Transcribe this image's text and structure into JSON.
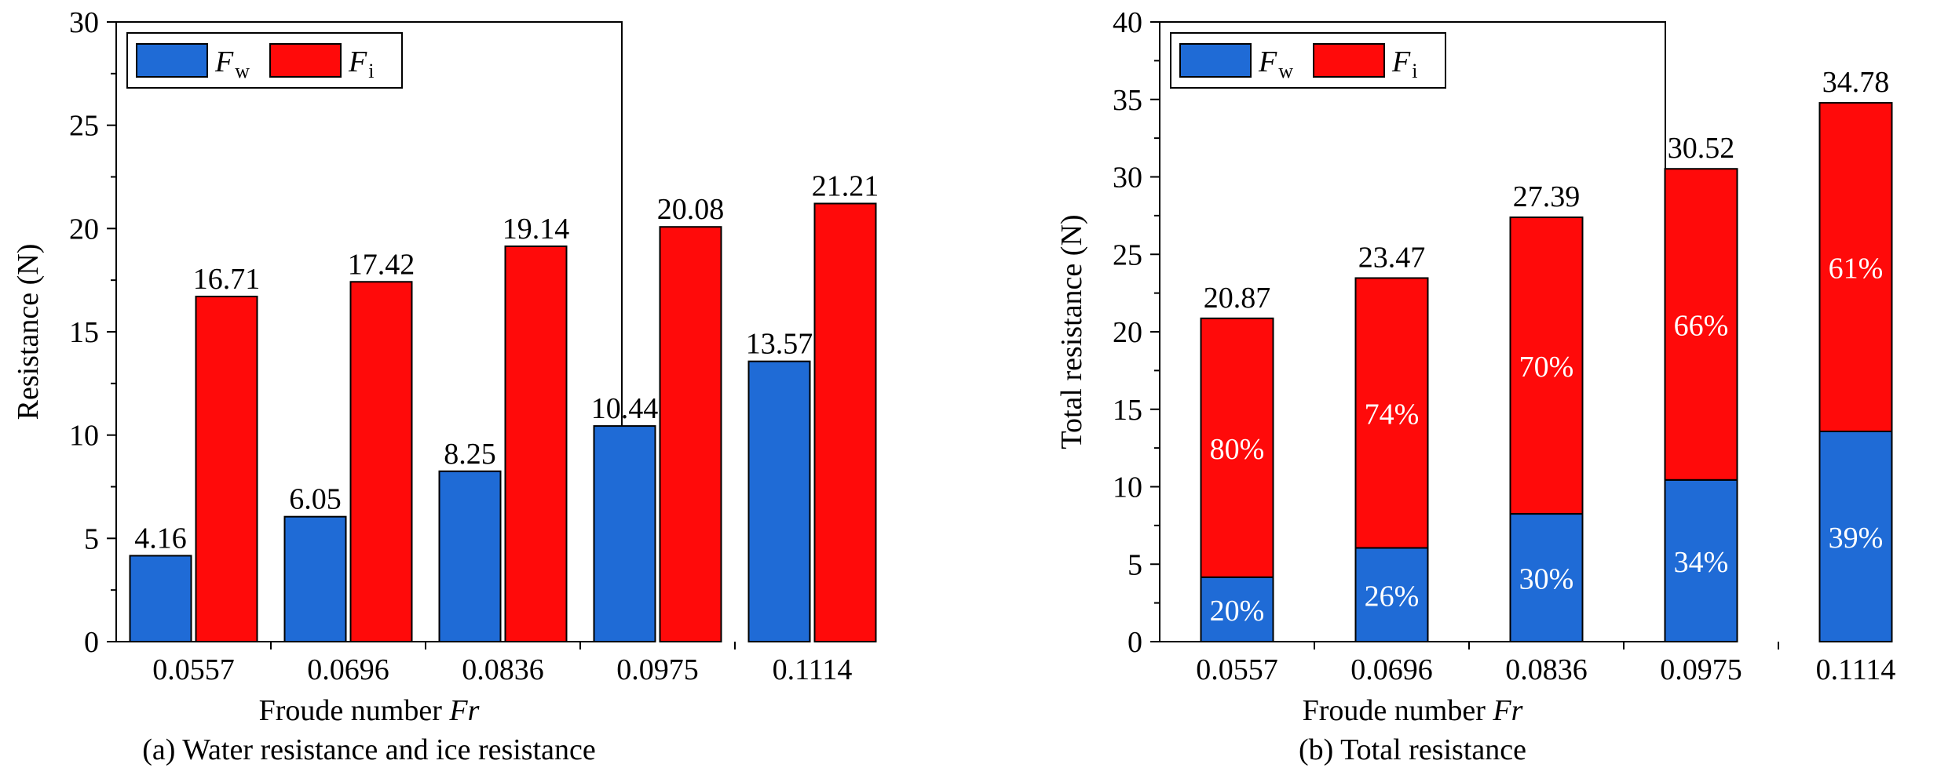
{
  "colors": {
    "water": "#1f6bd6",
    "ice": "#ff0a0a",
    "axis": "#000000"
  },
  "chart_data": [
    {
      "type": "bar",
      "caption": "(a) Water resistance and ice resistance",
      "xlabel": "Froude number",
      "xlabel_symbol": "Fr",
      "ylabel": "Resistance (N)",
      "ylim": [
        0,
        30
      ],
      "yticks": [
        "0",
        "5",
        "10",
        "15",
        "20",
        "25",
        "30"
      ],
      "categories": [
        "0.0557",
        "0.0696",
        "0.0836",
        "0.0975",
        "0.1114"
      ],
      "legend": {
        "placement": "top-left",
        "entries": [
          {
            "symbol": "F",
            "subscript": "w"
          },
          {
            "symbol": "F",
            "subscript": "i"
          }
        ]
      },
      "series": [
        {
          "name": "Fw",
          "values": [
            4.16,
            6.05,
            8.25,
            10.44,
            13.57
          ],
          "labels": [
            "4.16",
            "6.05",
            "8.25",
            "10.44",
            "13.57"
          ]
        },
        {
          "name": "Fi",
          "values": [
            16.71,
            17.42,
            19.14,
            20.08,
            21.21
          ],
          "labels": [
            "16.71",
            "17.42",
            "19.14",
            "20.08",
            "21.21"
          ]
        }
      ]
    },
    {
      "type": "bar",
      "stacked": true,
      "caption": "(b) Total resistance",
      "xlabel": "Froude number",
      "xlabel_symbol": "Fr",
      "ylabel": "Total resistance (N)",
      "ylim": [
        0,
        40
      ],
      "yticks": [
        "0",
        "5",
        "10",
        "15",
        "20",
        "25",
        "30",
        "35",
        "40"
      ],
      "categories": [
        "0.0557",
        "0.0696",
        "0.0836",
        "0.0975",
        "0.1114"
      ],
      "legend": {
        "placement": "top-left",
        "entries": [
          {
            "symbol": "F",
            "subscript": "w"
          },
          {
            "symbol": "F",
            "subscript": "i"
          }
        ]
      },
      "series": [
        {
          "name": "Fw",
          "values": [
            4.16,
            6.05,
            8.25,
            10.44,
            13.57
          ],
          "percent_labels": [
            "20%",
            "26%",
            "30%",
            "34%",
            "39%"
          ]
        },
        {
          "name": "Fi",
          "values": [
            16.71,
            17.42,
            19.14,
            20.08,
            21.21
          ],
          "percent_labels": [
            "80%",
            "74%",
            "70%",
            "66%",
            "61%"
          ]
        }
      ],
      "totals": [
        "20.87",
        "23.47",
        "27.39",
        "30.52",
        "34.78"
      ]
    }
  ]
}
